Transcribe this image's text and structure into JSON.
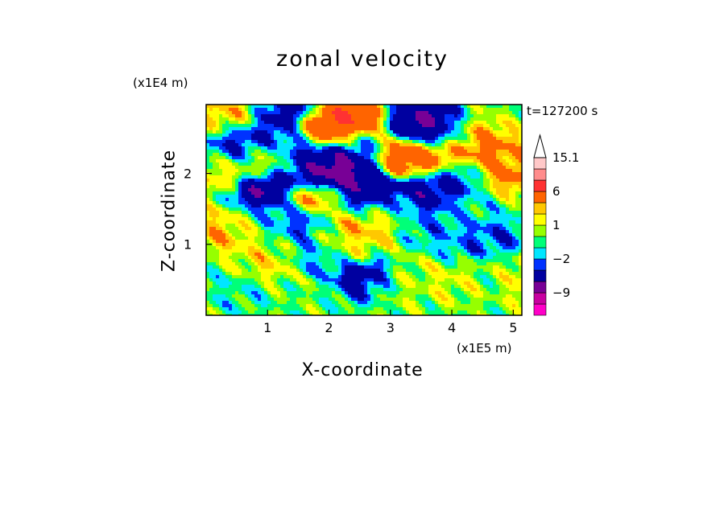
{
  "chart_data": {
    "type": "heatmap",
    "title": "zonal velocity",
    "xlabel": "X-coordinate",
    "ylabel": "Z-coordinate",
    "x_units": "(x1E5 m)",
    "y_units": "(x1E4 m)",
    "time_label": "t=127200 s",
    "xlim": [
      0.0,
      5.14
    ],
    "ylim": [
      0.0,
      2.97
    ],
    "xticks": [
      "1",
      "2",
      "3",
      "4",
      "5"
    ],
    "yticks": [
      "1",
      "2"
    ],
    "grid": false,
    "legend": "colorbar right",
    "colorbar": {
      "levels": [
        -15,
        -12,
        -9,
        -6,
        -3,
        -2,
        -1,
        0,
        1,
        2,
        3,
        6,
        9,
        12,
        15.1
      ],
      "tick_labels": [
        "15.1",
        "6",
        "1",
        "-2",
        "-9"
      ],
      "tick_values": [
        15.1,
        6,
        1,
        -2,
        -9
      ],
      "colors": [
        "#ff00c8",
        "#c800a0",
        "#780096",
        "#0000a0",
        "#0032ff",
        "#00e6ff",
        "#00ff78",
        "#96ff00",
        "#ffff00",
        "#ffc800",
        "#ff6400",
        "#ff3232",
        "#ff8c8c",
        "#ffc8c8"
      ],
      "extend_top_color": "#ffffff"
    },
    "features": [
      {
        "x": 1.0,
        "z": 1.75,
        "value": -7
      },
      {
        "x": 1.4,
        "z": 2.25,
        "value": -6
      },
      {
        "x": 1.6,
        "z": 2.0,
        "value": -5
      },
      {
        "x": 2.05,
        "z": 2.0,
        "value": -9
      },
      {
        "x": 2.4,
        "z": 2.15,
        "value": -7
      },
      {
        "x": 2.6,
        "z": 1.7,
        "value": -6
      },
      {
        "x": 3.8,
        "z": 2.65,
        "value": -9
      },
      {
        "x": 3.5,
        "z": 2.7,
        "value": -6
      },
      {
        "x": 3.5,
        "z": 1.7,
        "value": -6
      },
      {
        "x": 4.0,
        "z": 1.9,
        "value": -4
      },
      {
        "x": 1.5,
        "z": 1.4,
        "value": -4
      },
      {
        "x": 0.6,
        "z": 2.35,
        "value": -4
      },
      {
        "x": 0.95,
        "z": 2.6,
        "value": -4
      },
      {
        "x": 1.25,
        "z": 2.9,
        "value": -5
      },
      {
        "x": 2.6,
        "z": 0.5,
        "value": -6
      },
      {
        "x": 1.85,
        "z": 0.85,
        "value": -3
      },
      {
        "x": 3.7,
        "z": 1.25,
        "value": -2
      },
      {
        "x": 4.1,
        "z": 1.0,
        "value": -2
      },
      {
        "x": 4.6,
        "z": 1.1,
        "value": -3
      },
      {
        "x": 4.65,
        "z": 0.5,
        "value": -2
      },
      {
        "x": 2.0,
        "z": 2.65,
        "value": 6
      },
      {
        "x": 2.35,
        "z": 2.7,
        "value": 7
      },
      {
        "x": 1.1,
        "z": 2.2,
        "value": 5
      },
      {
        "x": 1.7,
        "z": 1.65,
        "value": 6
      },
      {
        "x": 3.1,
        "z": 2.25,
        "value": 6
      },
      {
        "x": 3.6,
        "z": 2.2,
        "value": 5
      },
      {
        "x": 4.1,
        "z": 2.6,
        "value": 4
      },
      {
        "x": 4.55,
        "z": 2.35,
        "value": 4
      },
      {
        "x": 0.4,
        "z": 1.2,
        "value": 3
      },
      {
        "x": 0.5,
        "z": 2.85,
        "value": 3
      },
      {
        "x": 2.55,
        "z": 1.25,
        "value": 3
      },
      {
        "x": 1.0,
        "z": 0.75,
        "value": 2
      },
      {
        "x": 2.2,
        "z": 0.95,
        "value": 2
      },
      {
        "x": 3.5,
        "z": 0.6,
        "value": 1
      },
      {
        "x": 3.0,
        "z": 0.4,
        "value": 1
      },
      {
        "x": 4.3,
        "z": 0.5,
        "value": 2
      },
      {
        "x": 5.0,
        "z": 0.5,
        "value": 3
      },
      {
        "x": 0.5,
        "z": 0.35,
        "value": -1
      },
      {
        "x": 0.2,
        "z": 2.0,
        "value": 2
      },
      {
        "x": 4.9,
        "z": 2.0,
        "value": 4
      },
      {
        "x": 3.0,
        "z": 1.5,
        "value": 0
      },
      {
        "x": 2.5,
        "z": 2.4,
        "value": -3
      },
      {
        "x": 4.3,
        "z": 1.5,
        "value": -1
      },
      {
        "x": 1.7,
        "z": 0.3,
        "value": 0
      },
      {
        "x": 0.9,
        "z": 1.3,
        "value": -1
      }
    ]
  }
}
